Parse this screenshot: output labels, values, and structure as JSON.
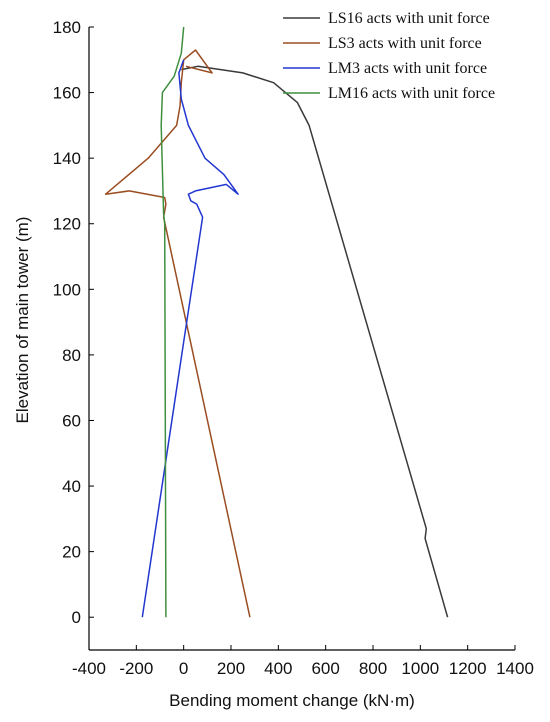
{
  "chart_data": {
    "type": "line",
    "title": "",
    "xlabel": "Bending moment change (kN·m)",
    "ylabel": "Elevation of main tower (m)",
    "xlim": [
      -400,
      1400
    ],
    "ylim": [
      -10,
      180
    ],
    "xticks": [
      -400,
      -200,
      0,
      200,
      400,
      600,
      800,
      1000,
      1200,
      1400
    ],
    "yticks": [
      0,
      20,
      40,
      60,
      80,
      100,
      120,
      140,
      160,
      180
    ],
    "xtick_labels": [
      "-400",
      "-200",
      "0",
      "200",
      "400",
      "600",
      "800",
      "1000",
      "1200",
      "1400"
    ],
    "ytick_labels": [
      "0",
      "20",
      "40",
      "60",
      "80",
      "100",
      "120",
      "140",
      "160",
      "180"
    ],
    "grid": false,
    "legend_position": "top-right",
    "series": [
      {
        "name": "LS16 acts with unit force",
        "color": "#3a3a3a",
        "points": [
          [
            1115,
            0
          ],
          [
            1020,
            24
          ],
          [
            1025,
            27
          ],
          [
            530,
            150
          ],
          [
            480,
            157
          ],
          [
            380,
            163
          ],
          [
            250,
            166
          ],
          [
            60,
            168
          ],
          [
            -10,
            167
          ]
        ]
      },
      {
        "name": "LS3 acts with unit force",
        "color": "#9b4d22",
        "points": [
          [
            280,
            0
          ],
          [
            -85,
            122
          ],
          [
            -75,
            126
          ],
          [
            -80,
            128
          ],
          [
            -230,
            130
          ],
          [
            -330,
            129
          ],
          [
            -150,
            140
          ],
          [
            -30,
            150
          ],
          [
            -15,
            156
          ],
          [
            -10,
            163
          ],
          [
            0,
            170
          ],
          [
            50,
            173
          ],
          [
            120,
            166
          ],
          [
            10,
            168
          ]
        ]
      },
      {
        "name": "LM3 acts with unit force",
        "color": "#2236d0",
        "points": [
          [
            -175,
            0
          ],
          [
            0,
            84
          ],
          [
            80,
            122
          ],
          [
            55,
            126
          ],
          [
            30,
            127
          ],
          [
            20,
            129
          ],
          [
            50,
            130
          ],
          [
            180,
            132
          ],
          [
            230,
            129
          ],
          [
            170,
            135
          ],
          [
            90,
            140
          ],
          [
            20,
            150
          ],
          [
            -10,
            158
          ],
          [
            -20,
            166
          ],
          [
            0,
            170
          ]
        ]
      },
      {
        "name": "LM16 acts with unit force",
        "color": "#3f8f3f",
        "points": [
          [
            -75,
            0
          ],
          [
            -80,
            120
          ],
          [
            -85,
            123
          ],
          [
            -95,
            150
          ],
          [
            -90,
            160
          ],
          [
            -40,
            165
          ],
          [
            -10,
            172
          ],
          [
            0,
            180
          ]
        ]
      }
    ]
  }
}
